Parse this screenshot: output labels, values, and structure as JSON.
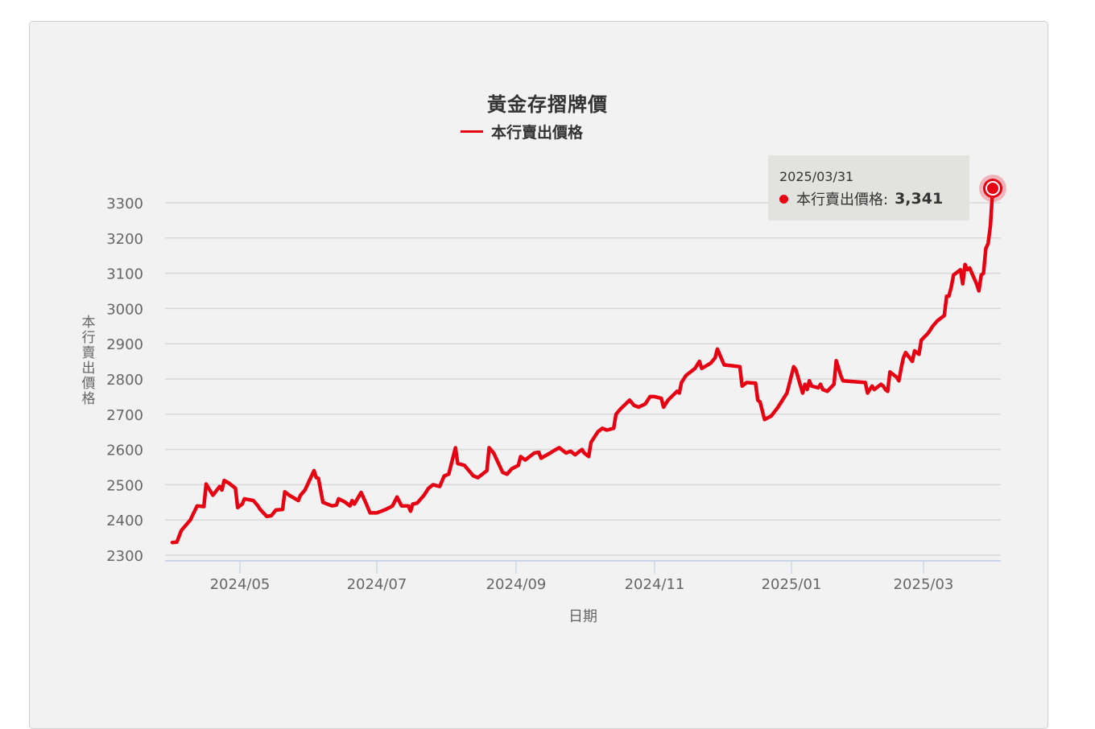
{
  "chart": {
    "title": "黃金存摺牌價",
    "legend": [
      {
        "label": "本行賣出價格",
        "color": "#e60012"
      }
    ],
    "yaxis_title": "本行賣出價格",
    "xaxis_title": "日期",
    "tooltip": {
      "date": "2025/03/31",
      "series_label": "本行賣出價格:",
      "value": "3,341"
    }
  },
  "chart_data": {
    "type": "line",
    "title": "黃金存摺牌價",
    "xlabel": "日期",
    "ylabel": "本行賣出價格",
    "ylim": [
      2300,
      3300
    ],
    "yticks": [
      2300,
      2400,
      2500,
      2600,
      2700,
      2800,
      2900,
      3000,
      3100,
      3200,
      3300
    ],
    "xticks": [
      "2024/05",
      "2024/07",
      "2024/09",
      "2024/11",
      "2025/01",
      "2025/03"
    ],
    "grid": true,
    "legend_position": "top",
    "series": [
      {
        "name": "本行賣出價格",
        "color": "#e60012",
        "points": [
          [
            "2024/04/01",
            2336
          ],
          [
            "2024/04/03",
            2337
          ],
          [
            "2024/04/05",
            2370
          ],
          [
            "2024/04/09",
            2400
          ],
          [
            "2024/04/12",
            2440
          ],
          [
            "2024/04/15",
            2438
          ],
          [
            "2024/04/16",
            2502
          ],
          [
            "2024/04/19",
            2470
          ],
          [
            "2024/04/22",
            2495
          ],
          [
            "2024/04/23",
            2485
          ],
          [
            "2024/04/24",
            2512
          ],
          [
            "2024/04/26",
            2505
          ],
          [
            "2024/04/29",
            2490
          ],
          [
            "2024/04/30",
            2435
          ],
          [
            "2024/05/02",
            2445
          ],
          [
            "2024/05/03",
            2460
          ],
          [
            "2024/05/07",
            2455
          ],
          [
            "2024/05/09",
            2440
          ],
          [
            "2024/05/10",
            2430
          ],
          [
            "2024/05/13",
            2410
          ],
          [
            "2024/05/15",
            2412
          ],
          [
            "2024/05/17",
            2428
          ],
          [
            "2024/05/20",
            2430
          ],
          [
            "2024/05/21",
            2480
          ],
          [
            "2024/05/23",
            2470
          ],
          [
            "2024/05/27",
            2455
          ],
          [
            "2024/05/28",
            2470
          ],
          [
            "2024/05/30",
            2485
          ],
          [
            "2024/06/03",
            2540
          ],
          [
            "2024/06/04",
            2520
          ],
          [
            "2024/06/05",
            2518
          ],
          [
            "2024/06/07",
            2450
          ],
          [
            "2024/06/11",
            2440
          ],
          [
            "2024/06/13",
            2442
          ],
          [
            "2024/06/14",
            2460
          ],
          [
            "2024/06/17",
            2450
          ],
          [
            "2024/06/19",
            2440
          ],
          [
            "2024/06/20",
            2455
          ],
          [
            "2024/06/21",
            2445
          ],
          [
            "2024/06/24",
            2478
          ],
          [
            "2024/06/26",
            2450
          ],
          [
            "2024/06/28",
            2420
          ],
          [
            "2024/07/01",
            2420
          ],
          [
            "2024/07/03",
            2425
          ],
          [
            "2024/07/05",
            2430
          ],
          [
            "2024/07/08",
            2440
          ],
          [
            "2024/07/10",
            2465
          ],
          [
            "2024/07/12",
            2440
          ],
          [
            "2024/07/15",
            2440
          ],
          [
            "2024/07/16",
            2425
          ],
          [
            "2024/07/17",
            2445
          ],
          [
            "2024/07/19",
            2448
          ],
          [
            "2024/07/22",
            2470
          ],
          [
            "2024/07/24",
            2490
          ],
          [
            "2024/07/26",
            2500
          ],
          [
            "2024/07/29",
            2495
          ],
          [
            "2024/07/31",
            2525
          ],
          [
            "2024/08/02",
            2530
          ],
          [
            "2024/08/05",
            2605
          ],
          [
            "2024/08/06",
            2560
          ],
          [
            "2024/08/09",
            2555
          ],
          [
            "2024/08/13",
            2525
          ],
          [
            "2024/08/15",
            2520
          ],
          [
            "2024/08/19",
            2540
          ],
          [
            "2024/08/20",
            2605
          ],
          [
            "2024/08/22",
            2590
          ],
          [
            "2024/08/26",
            2535
          ],
          [
            "2024/08/28",
            2530
          ],
          [
            "2024/08/30",
            2545
          ],
          [
            "2024/09/02",
            2555
          ],
          [
            "2024/09/03",
            2580
          ],
          [
            "2024/09/05",
            2570
          ],
          [
            "2024/09/09",
            2590
          ],
          [
            "2024/09/11",
            2592
          ],
          [
            "2024/09/12",
            2575
          ],
          [
            "2024/09/16",
            2590
          ],
          [
            "2024/09/18",
            2598
          ],
          [
            "2024/09/20",
            2605
          ],
          [
            "2024/09/23",
            2590
          ],
          [
            "2024/09/25",
            2595
          ],
          [
            "2024/09/27",
            2585
          ],
          [
            "2024/09/30",
            2600
          ],
          [
            "2024/10/01",
            2590
          ],
          [
            "2024/10/03",
            2580
          ],
          [
            "2024/10/04",
            2620
          ],
          [
            "2024/10/07",
            2650
          ],
          [
            "2024/10/09",
            2660
          ],
          [
            "2024/10/11",
            2655
          ],
          [
            "2024/10/14",
            2660
          ],
          [
            "2024/10/15",
            2700
          ],
          [
            "2024/10/17",
            2715
          ],
          [
            "2024/10/21",
            2740
          ],
          [
            "2024/10/23",
            2725
          ],
          [
            "2024/10/25",
            2720
          ],
          [
            "2024/10/28",
            2730
          ],
          [
            "2024/10/30",
            2750
          ],
          [
            "2024/11/01",
            2750
          ],
          [
            "2024/11/04",
            2745
          ],
          [
            "2024/11/05",
            2720
          ],
          [
            "2024/11/07",
            2740
          ],
          [
            "2024/11/11",
            2765
          ],
          [
            "2024/11/12",
            2760
          ],
          [
            "2024/11/13",
            2790
          ],
          [
            "2024/11/15",
            2810
          ],
          [
            "2024/11/19",
            2830
          ],
          [
            "2024/11/21",
            2850
          ],
          [
            "2024/11/22",
            2830
          ],
          [
            "2024/11/26",
            2845
          ],
          [
            "2024/11/28",
            2860
          ],
          [
            "2024/11/29",
            2885
          ],
          [
            "2024/12/02",
            2840
          ],
          [
            "2024/12/05",
            2838
          ],
          [
            "2024/12/09",
            2835
          ],
          [
            "2024/12/10",
            2780
          ],
          [
            "2024/12/12",
            2790
          ],
          [
            "2024/12/16",
            2788
          ],
          [
            "2024/12/17",
            2740
          ],
          [
            "2024/12/18",
            2735
          ],
          [
            "2024/12/20",
            2685
          ],
          [
            "2024/12/23",
            2695
          ],
          [
            "2024/12/26",
            2720
          ],
          [
            "2024/12/30",
            2760
          ],
          [
            "2025/01/02",
            2835
          ],
          [
            "2025/01/03",
            2825
          ],
          [
            "2025/01/06",
            2760
          ],
          [
            "2025/01/07",
            2785
          ],
          [
            "2025/01/08",
            2770
          ],
          [
            "2025/01/09",
            2795
          ],
          [
            "2025/01/10",
            2780
          ],
          [
            "2025/01/13",
            2775
          ],
          [
            "2025/01/14",
            2785
          ],
          [
            "2025/01/15",
            2770
          ],
          [
            "2025/01/17",
            2765
          ],
          [
            "2025/01/20",
            2785
          ],
          [
            "2025/01/21",
            2852
          ],
          [
            "2025/01/23",
            2810
          ],
          [
            "2025/01/24",
            2795
          ],
          [
            "2025/02/03",
            2790
          ],
          [
            "2025/02/04",
            2760
          ],
          [
            "2025/02/05",
            2770
          ],
          [
            "2025/02/06",
            2780
          ],
          [
            "2025/02/07",
            2770
          ],
          [
            "2025/02/10",
            2785
          ],
          [
            "2025/02/11",
            2780
          ],
          [
            "2025/02/12",
            2770
          ],
          [
            "2025/02/13",
            2765
          ],
          [
            "2025/02/14",
            2820
          ],
          [
            "2025/02/17",
            2805
          ],
          [
            "2025/02/18",
            2795
          ],
          [
            "2025/02/19",
            2830
          ],
          [
            "2025/02/20",
            2860
          ],
          [
            "2025/02/21",
            2875
          ],
          [
            "2025/02/24",
            2850
          ],
          [
            "2025/02/25",
            2880
          ],
          [
            "2025/02/26",
            2875
          ],
          [
            "2025/02/27",
            2870
          ],
          [
            "2025/02/28",
            2910
          ],
          [
            "2025/03/03",
            2930
          ],
          [
            "2025/03/04",
            2940
          ],
          [
            "2025/03/05",
            2950
          ],
          [
            "2025/03/07",
            2965
          ],
          [
            "2025/03/10",
            2980
          ],
          [
            "2025/03/11",
            3035
          ],
          [
            "2025/03/12",
            3035
          ],
          [
            "2025/03/13",
            3060
          ],
          [
            "2025/03/14",
            3095
          ],
          [
            "2025/03/17",
            3110
          ],
          [
            "2025/03/18",
            3070
          ],
          [
            "2025/03/19",
            3125
          ],
          [
            "2025/03/20",
            3110
          ],
          [
            "2025/03/21",
            3115
          ],
          [
            "2025/03/24",
            3070
          ],
          [
            "2025/03/25",
            3050
          ],
          [
            "2025/03/26",
            3095
          ],
          [
            "2025/03/27",
            3100
          ],
          [
            "2025/03/28",
            3170
          ],
          [
            "2025/03/29",
            3185
          ],
          [
            "2025/03/30",
            3235
          ],
          [
            "2025/03/31",
            3341
          ]
        ]
      }
    ]
  }
}
